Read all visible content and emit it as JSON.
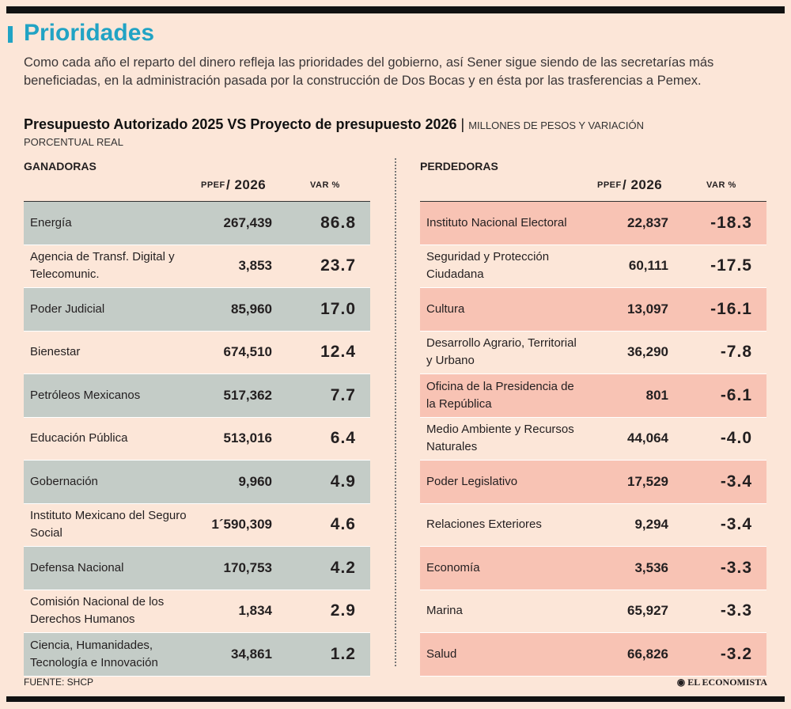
{
  "header": {
    "title": "Prioridades",
    "intro": "Como cada año el reparto del dinero refleja las prioridades del gobierno, así Sener sigue siendo de las secretarías más beneficiadas, en la administración pasada por la construcción de Dos Bocas y en ésta por las trasferencias a Pemex.",
    "subtitle": "Presupuesto Autorizado 2025 VS Proyecto de presupuesto 2026",
    "units_line1": "MILLONES DE PESOS Y VARIACIÓN",
    "units_line2": "PORCENTUAL REAL"
  },
  "columns": {
    "ppef_small": "PPEF",
    "ppef_year": "/ 2026",
    "var": "VAR %"
  },
  "colors": {
    "winner_shade": "#c4ccc7",
    "loser_shade": "#f8c3b4",
    "title": "#21a3c4",
    "base": "#fce6d8"
  },
  "chart_data": [
    {
      "type": "table",
      "title": "GANADORAS",
      "columns": [
        "PPEF / 2026",
        "VAR %"
      ],
      "rows": [
        {
          "name": "Energía",
          "ppef": "267,439",
          "var": "86.8"
        },
        {
          "name": "Agencia de Transf. Digital y Telecomunic.",
          "ppef": "3,853",
          "var": "23.7"
        },
        {
          "name": "Poder Judicial",
          "ppef": "85,960",
          "var": "17.0"
        },
        {
          "name": "Bienestar",
          "ppef": "674,510",
          "var": "12.4"
        },
        {
          "name": "Petróleos Mexicanos",
          "ppef": "517,362",
          "var": "7.7"
        },
        {
          "name": "Educación Pública",
          "ppef": "513,016",
          "var": "6.4"
        },
        {
          "name": "Gobernación",
          "ppef": "9,960",
          "var": "4.9"
        },
        {
          "name": "Instituto Mexicano del Seguro Social",
          "ppef": "1´590,309",
          "var": "4.6"
        },
        {
          "name": "Defensa Nacional",
          "ppef": "170,753",
          "var": "4.2"
        },
        {
          "name": "Comisión Nacional de los Derechos Humanos",
          "ppef": "1,834",
          "var": "2.9"
        },
        {
          "name": "Ciencia, Humanidades, Tecnología e Innovación",
          "ppef": "34,861",
          "var": "1.2"
        }
      ]
    },
    {
      "type": "table",
      "title": "PERDEDORAS",
      "columns": [
        "PPEF / 2026",
        "VAR %"
      ],
      "rows": [
        {
          "name": "Instituto Nacional Electoral",
          "ppef": "22,837",
          "var": "-18.3"
        },
        {
          "name": "Seguridad y Protección Ciudadana",
          "ppef": "60,111",
          "var": "-17.5"
        },
        {
          "name": "Cultura",
          "ppef": "13,097",
          "var": "-16.1"
        },
        {
          "name": "Desarrollo Agrario, Territorial y Urbano",
          "ppef": "36,290",
          "var": "-7.8"
        },
        {
          "name": "Oficina de la Presidencia de la República",
          "ppef": "801",
          "var": "-6.1"
        },
        {
          "name": "Medio Ambiente y Recursos Naturales",
          "ppef": "44,064",
          "var": "-4.0"
        },
        {
          "name": "Poder Legislativo",
          "ppef": "17,529",
          "var": "-3.4"
        },
        {
          "name": "Relaciones Exteriores",
          "ppef": "9,294",
          "var": "-3.4"
        },
        {
          "name": "Economía",
          "ppef": "3,536",
          "var": "-3.3"
        },
        {
          "name": "Marina",
          "ppef": "65,927",
          "var": "-3.3"
        },
        {
          "name": "Salud",
          "ppef": "66,826",
          "var": "-3.2"
        }
      ]
    }
  ],
  "footer": {
    "source": "FUENTE: SHCP",
    "logo": "EL ECONOMISTA"
  }
}
